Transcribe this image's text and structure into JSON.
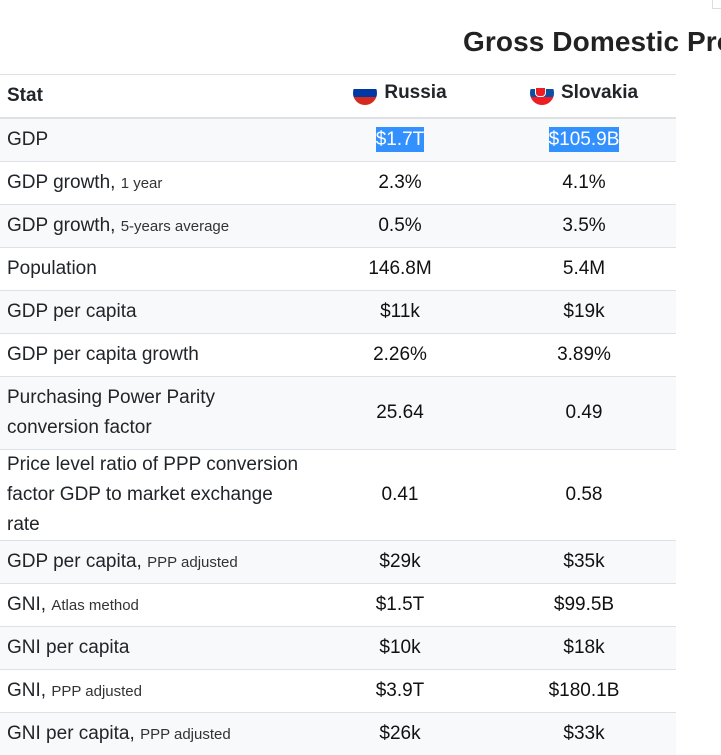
{
  "page": {
    "title": "Gross Domestic Pro"
  },
  "table": {
    "header": {
      "stat": "Stat",
      "country1": "Russia",
      "country2": "Slovakia"
    },
    "flags": {
      "russia": [
        "#ffffff",
        "#0039a6",
        "#d52b1e"
      ],
      "slovakia": [
        "#ffffff",
        "#0b4ea2",
        "#ee1c25"
      ]
    },
    "rows": [
      {
        "label": "GDP",
        "note": "",
        "v1": "$1.7T",
        "v2": "$105.9B"
      },
      {
        "label": "GDP growth,",
        "note": "1 year",
        "v1": "2.3%",
        "v2": "4.1%"
      },
      {
        "label": "GDP growth,",
        "note": "5-years average",
        "v1": "0.5%",
        "v2": "3.5%"
      },
      {
        "label": "Population",
        "note": "",
        "v1": "146.8M",
        "v2": "5.4M"
      },
      {
        "label": "GDP per capita",
        "note": "",
        "v1": "$11k",
        "v2": "$19k"
      },
      {
        "label": "GDP per capita growth",
        "note": "",
        "v1": "2.26%",
        "v2": "3.89%"
      },
      {
        "label": "Purchasing Power Parity conversion factor",
        "note": "",
        "v1": "25.64",
        "v2": "0.49"
      },
      {
        "label": "Price level ratio of PPP conversion factor GDP to market exchange rate",
        "note": "",
        "v1": "0.41",
        "v2": "0.58"
      },
      {
        "label": "GDP per capita,",
        "note": "PPP adjusted",
        "v1": "$29k",
        "v2": "$35k"
      },
      {
        "label": "GNI,",
        "note": "Atlas method",
        "v1": "$1.5T",
        "v2": "$99.5B"
      },
      {
        "label": "GNI per capita",
        "note": "",
        "v1": "$10k",
        "v2": "$18k"
      },
      {
        "label": "GNI,",
        "note": "PPP adjusted",
        "v1": "$3.9T",
        "v2": "$180.1B"
      },
      {
        "label": "GNI per capita,",
        "note": "PPP adjusted",
        "v1": "$26k",
        "v2": "$33k"
      }
    ]
  }
}
